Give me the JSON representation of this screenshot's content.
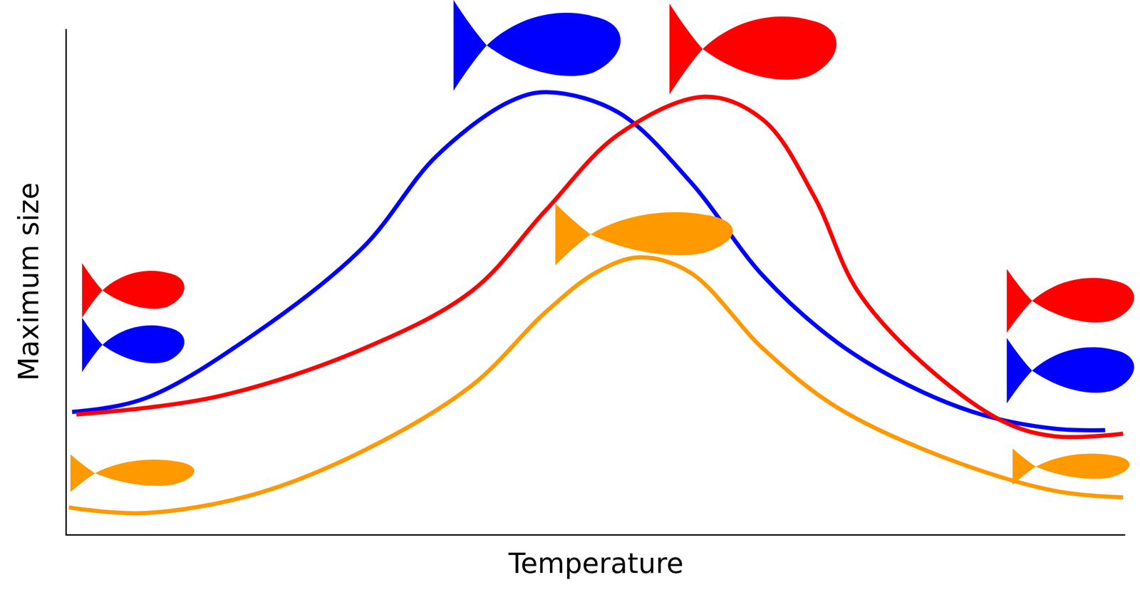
{
  "chart_data": {
    "type": "line",
    "x_label": "Temperature",
    "y_label": "Maximum size",
    "xlim": [
      0,
      100
    ],
    "ylim": [
      0,
      100
    ],
    "tick_labels": false,
    "grid": false,
    "series": [
      {
        "color": "#0000ff",
        "line_style": "solid",
        "x": [
          0.5,
          7.4,
          17.7,
          28.0,
          34.9,
          41.8,
          45.5,
          52.1,
          58.9,
          65.8,
          72.7,
          79.5,
          86.4,
          93.3,
          98.1
        ],
        "values": [
          24.2,
          26.9,
          39.6,
          56.8,
          74.8,
          85.6,
          87.5,
          83.5,
          69.8,
          51.1,
          38.1,
          29.5,
          23.7,
          20.9,
          20.6
        ]
      },
      {
        "color": "#ff0000",
        "line_style": "solid",
        "x": [
          0.9,
          14.3,
          28.0,
          38.3,
          45.2,
          52.1,
          60.3,
          65.8,
          70.6,
          74.7,
          80.9,
          88.5,
          93.3,
          99.8
        ],
        "values": [
          23.7,
          27.3,
          36.7,
          48.2,
          64.0,
          79.1,
          86.6,
          82.0,
          66.9,
          48.2,
          33.8,
          22.3,
          19.4,
          19.9
        ]
      },
      {
        "color": "#ff9900",
        "line_style": "solid",
        "x": [
          0.2,
          7.4,
          17.7,
          28.0,
          38.3,
          45.2,
          50.0,
          54.1,
          58.9,
          65.8,
          72.7,
          83.0,
          93.3,
          99.8
        ],
        "values": [
          5.3,
          4.2,
          7.9,
          16.5,
          29.5,
          43.9,
          51.8,
          54.8,
          51.8,
          36.7,
          25.2,
          15.1,
          8.6,
          7.3
        ]
      }
    ]
  }
}
